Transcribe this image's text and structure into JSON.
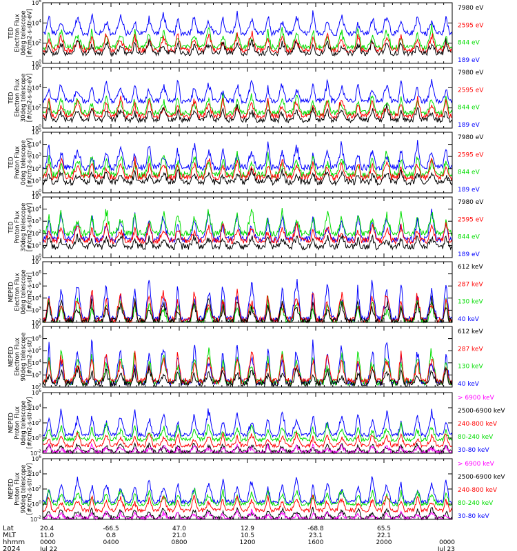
{
  "colors": {
    "blue": "#0000ff",
    "red": "#ff0000",
    "green": "#00dd00",
    "black": "#000000",
    "magenta": "#ff00ff"
  },
  "chart_data": [
    {
      "type": "line",
      "ylabel": [
        "TED",
        "Electron Flux",
        "0deg telescope",
        "[#/cm2-s-str-eV]"
      ],
      "yscale": "log",
      "ylim_exp": [
        0,
        6
      ],
      "yticks": [
        "10^0",
        "10^2",
        "10^4",
        "10^6"
      ],
      "series": [
        {
          "name": "7980 eV",
          "color": "black",
          "base": 1.0,
          "peak": 2.5
        },
        {
          "name": "2595 eV",
          "color": "red",
          "base": 1.3,
          "peak": 3.3
        },
        {
          "name": "844 eV",
          "color": "green",
          "base": 1.6,
          "peak": 3.8
        },
        {
          "name": "189 eV",
          "color": "blue",
          "base": 3.0,
          "peak": 5.3
        }
      ]
    },
    {
      "type": "line",
      "ylabel": [
        "TED",
        "Electron Flux",
        "30deg telescope",
        "[#/cm2-s-str-eV]"
      ],
      "yscale": "log",
      "ylim_exp": [
        0,
        6
      ],
      "yticks": [
        "10^0",
        "10^2",
        "10^4",
        "10^6"
      ],
      "series": [
        {
          "name": "7980 eV",
          "color": "black",
          "base": 0.8,
          "peak": 2.3
        },
        {
          "name": "2595 eV",
          "color": "red",
          "base": 1.2,
          "peak": 3.2
        },
        {
          "name": "844 eV",
          "color": "green",
          "base": 1.5,
          "peak": 3.6
        },
        {
          "name": "189 eV",
          "color": "blue",
          "base": 2.7,
          "peak": 5.0
        }
      ]
    },
    {
      "type": "line",
      "ylabel": [
        "TED",
        "Proton Flux",
        "0deg telescope",
        "[#/cm2-s-str-eV]"
      ],
      "yscale": "log",
      "ylim_exp": [
        0,
        5
      ],
      "yticks": [
        "10^0",
        "10^1",
        "10^2",
        "10^3",
        "10^4",
        "10^5"
      ],
      "series": [
        {
          "name": "7980 eV",
          "color": "black",
          "base": 0.9,
          "peak": 2.0
        },
        {
          "name": "2595 eV",
          "color": "red",
          "base": 1.3,
          "peak": 3.0
        },
        {
          "name": "844 eV",
          "color": "green",
          "base": 1.5,
          "peak": 3.6
        },
        {
          "name": "189 eV",
          "color": "blue",
          "base": 2.1,
          "peak": 4.3
        }
      ]
    },
    {
      "type": "line",
      "ylabel": [
        "TED",
        "Proton Flux",
        "30deg telescope",
        "[#/cm2-s-str-eV]"
      ],
      "yscale": "log",
      "ylim_exp": [
        0,
        5
      ],
      "yticks": [
        "10^0",
        "10^1",
        "10^2",
        "10^3",
        "10^4",
        "10^5"
      ],
      "series": [
        {
          "name": "7980 eV",
          "color": "black",
          "base": 0.9,
          "peak": 2.0
        },
        {
          "name": "2595 eV",
          "color": "red",
          "base": 1.4,
          "peak": 3.0
        },
        {
          "name": "844 eV",
          "color": "green",
          "base": 2.0,
          "peak": 4.3
        },
        {
          "name": "189 eV",
          "color": "blue",
          "base": 1.5,
          "peak": 4.0
        }
      ]
    },
    {
      "type": "line",
      "ylabel": [
        "MEPED",
        "Electron Flux",
        "0deg telescope",
        "[#/cm2-s-str]"
      ],
      "yscale": "log",
      "ylim_exp": [
        2,
        7
      ],
      "yticks": [
        "10^2",
        "10^3",
        "10^4",
        "10^5",
        "10^6",
        "10^7"
      ],
      "series": [
        {
          "name": "612 keV",
          "color": "black",
          "base": 2.1,
          "peak": 4.2
        },
        {
          "name": "287 keV",
          "color": "red",
          "base": 2.2,
          "peak": 5.0
        },
        {
          "name": "130 keV",
          "color": "green",
          "base": 2.0,
          "peak": 4.3
        },
        {
          "name": "40 keV",
          "color": "blue",
          "base": 2.3,
          "peak": 6.0
        }
      ]
    },
    {
      "type": "line",
      "ylabel": [
        "MEPED",
        "Electron Flux",
        "90deg telescope",
        "[#/cm2-s-str]"
      ],
      "yscale": "log",
      "ylim_exp": [
        2,
        7
      ],
      "yticks": [
        "10^2",
        "10^3",
        "10^4",
        "10^5",
        "10^6",
        "10^7"
      ],
      "series": [
        {
          "name": "612 keV",
          "color": "black",
          "base": 2.3,
          "peak": 3.8
        },
        {
          "name": "287 keV",
          "color": "red",
          "base": 2.5,
          "peak": 5.2
        },
        {
          "name": "130 keV",
          "color": "green",
          "base": 2.4,
          "peak": 5.6
        },
        {
          "name": "40 keV",
          "color": "blue",
          "base": 2.4,
          "peak": 6.2
        }
      ]
    },
    {
      "type": "line",
      "ylabel": [
        "MEPED",
        "Proton Flux",
        "0deg telescope",
        "[#/cm2-s-str-keV]"
      ],
      "yscale": "log",
      "ylim_exp": [
        -2,
        6
      ],
      "yticks": [
        "10^-2",
        "10^0",
        "10^2",
        "10^4",
        "10^6"
      ],
      "series": [
        {
          "name": "> 6900 keV",
          "color": "magenta",
          "base": -1.9,
          "peak": -0.8
        },
        {
          "name": "2500-6900 keV",
          "color": "black",
          "base": -1.8,
          "peak": -0.5
        },
        {
          "name": "240-800 keV",
          "color": "red",
          "base": -1.0,
          "peak": 1.0
        },
        {
          "name": "80-240 keV",
          "color": "green",
          "base": -0.2,
          "peak": 2.2
        },
        {
          "name": "30-80 keV",
          "color": "blue",
          "base": 0.4,
          "peak": 4.2
        }
      ]
    },
    {
      "type": "line",
      "ylabel": [
        "MEPED",
        "Proton Flux",
        "90deg telescope",
        "[#/cm2-s-str-keV]"
      ],
      "yscale": "log",
      "ylim_exp": [
        -2,
        6
      ],
      "yticks": [
        "10^-2",
        "10^0",
        "10^2",
        "10^4",
        "10^6"
      ],
      "series": [
        {
          "name": "> 6900 keV",
          "color": "magenta",
          "base": -1.9,
          "peak": -0.8
        },
        {
          "name": "2500-6900 keV",
          "color": "black",
          "base": -1.8,
          "peak": -0.3
        },
        {
          "name": "240-800 keV",
          "color": "red",
          "base": -0.8,
          "peak": 1.5
        },
        {
          "name": "80-240 keV",
          "color": "green",
          "base": 0.0,
          "peak": 2.3
        },
        {
          "name": "30-80 keV",
          "color": "blue",
          "base": 0.3,
          "peak": 4.0
        }
      ]
    }
  ],
  "x_axis": {
    "row_labels": [
      "Lat",
      "MLT",
      "hhmm",
      "2024"
    ],
    "ticks": [
      {
        "lat": "20.4",
        "mlt": "11.0",
        "hhmm": "0000",
        "date": "Jul 22"
      },
      {
        "lat": "-66.5",
        "mlt": "0.8",
        "hhmm": "0400",
        "date": ""
      },
      {
        "lat": "47.0",
        "mlt": "21.0",
        "hhmm": "0800",
        "date": ""
      },
      {
        "lat": "12.9",
        "mlt": "10.5",
        "hhmm": "1200",
        "date": ""
      },
      {
        "lat": "-68.8",
        "mlt": "23.1",
        "hhmm": "1600",
        "date": ""
      },
      {
        "lat": "65.5",
        "mlt": "22.1",
        "hhmm": "2000",
        "date": ""
      },
      {
        "lat": "",
        "mlt": "",
        "hhmm": "0000",
        "date": "Jul 23"
      }
    ]
  }
}
